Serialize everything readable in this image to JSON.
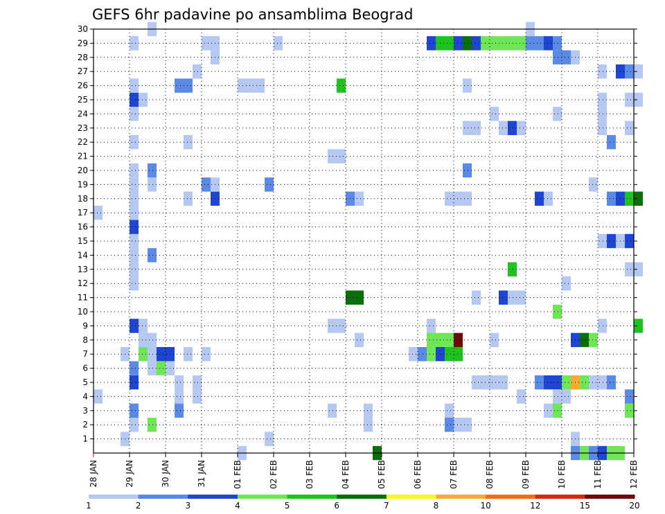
{
  "chart_data": {
    "type": "heatmap",
    "title": "GEFS 6hr padavine po ansamblima Beograd",
    "xlabel": "",
    "ylabel": "",
    "x_tick_labels": [
      "28 JAN",
      "29 JAN",
      "30 JAN",
      "31 JAN",
      "01 FEB",
      "02 FEB",
      "03 FEB",
      "04 FEB",
      "05 FEB",
      "06 FEB",
      "07 FEB",
      "08 FEB",
      "09 FEB",
      "10 FEB",
      "11 FEB",
      "12 FEB"
    ],
    "x_range_steps": [
      0,
      60
    ],
    "steps_per_day": 4,
    "y_tick_labels": [
      "1",
      "2",
      "3",
      "4",
      "5",
      "6",
      "7",
      "8",
      "9",
      "10",
      "11",
      "12",
      "13",
      "14",
      "15",
      "16",
      "17",
      "18",
      "19",
      "20",
      "21",
      "22",
      "23",
      "24",
      "25",
      "26",
      "27",
      "28",
      "29",
      "30"
    ],
    "y_range": [
      0,
      30
    ],
    "grid": true,
    "legend": {
      "position": "bottom",
      "levels": [
        "1",
        "2",
        "3",
        "4",
        "5",
        "6",
        "7",
        "8",
        "10",
        "12",
        "15",
        "20"
      ],
      "colors": [
        "#b4c8f2",
        "#5a8ae6",
        "#1e46d2",
        "#6ee656",
        "#1ec31e",
        "#0a6e0a",
        "#fafa1e",
        "#faaa32",
        "#f06e14",
        "#d22814",
        "#6e0a0a"
      ]
    },
    "cells": [
      [
        0,
        4,
        0
      ],
      [
        0,
        17,
        0
      ],
      [
        3,
        1,
        0
      ],
      [
        3,
        7,
        0
      ],
      [
        4,
        2,
        0
      ],
      [
        4,
        3,
        1
      ],
      [
        4,
        5,
        2
      ],
      [
        4,
        6,
        1
      ],
      [
        4,
        9,
        2
      ],
      [
        4,
        12,
        0
      ],
      [
        4,
        13,
        0
      ],
      [
        4,
        14,
        0
      ],
      [
        4,
        15,
        0
      ],
      [
        4,
        16,
        2
      ],
      [
        4,
        17,
        0
      ],
      [
        4,
        18,
        0
      ],
      [
        4,
        19,
        0
      ],
      [
        4,
        20,
        0
      ],
      [
        4,
        22,
        0
      ],
      [
        4,
        24,
        0
      ],
      [
        4,
        25,
        2
      ],
      [
        4,
        26,
        0
      ],
      [
        4,
        29,
        0
      ],
      [
        5,
        7,
        3
      ],
      [
        5,
        8,
        0
      ],
      [
        5,
        9,
        0
      ],
      [
        5,
        25,
        0
      ],
      [
        6,
        2,
        3
      ],
      [
        6,
        6,
        0
      ],
      [
        6,
        7,
        0
      ],
      [
        6,
        8,
        0
      ],
      [
        6,
        14,
        1
      ],
      [
        6,
        19,
        0
      ],
      [
        6,
        20,
        1
      ],
      [
        6,
        30,
        0
      ],
      [
        7,
        7,
        2
      ],
      [
        7,
        6,
        3
      ],
      [
        8,
        7,
        2
      ],
      [
        8,
        6,
        0
      ],
      [
        9,
        4,
        0
      ],
      [
        9,
        5,
        0
      ],
      [
        9,
        3,
        1
      ],
      [
        9,
        26,
        1
      ],
      [
        10,
        26,
        1
      ],
      [
        10,
        7,
        0
      ],
      [
        10,
        18,
        0
      ],
      [
        10,
        22,
        0
      ],
      [
        11,
        4,
        0
      ],
      [
        11,
        5,
        0
      ],
      [
        11,
        27,
        0
      ],
      [
        12,
        7,
        0
      ],
      [
        12,
        19,
        1
      ],
      [
        12,
        29,
        0
      ],
      [
        13,
        18,
        2
      ],
      [
        13,
        19,
        0
      ],
      [
        13,
        28,
        0
      ],
      [
        13,
        29,
        0
      ],
      [
        16,
        26,
        0
      ],
      [
        17,
        26,
        0
      ],
      [
        18,
        26,
        0
      ],
      [
        16,
        0,
        0
      ],
      [
        19,
        1,
        0
      ],
      [
        19,
        19,
        1
      ],
      [
        20,
        29,
        0
      ],
      [
        26,
        21,
        0
      ],
      [
        27,
        21,
        0
      ],
      [
        26,
        9,
        0
      ],
      [
        27,
        9,
        0
      ],
      [
        26,
        3,
        0
      ],
      [
        27,
        26,
        4
      ],
      [
        28,
        11,
        5
      ],
      [
        29,
        11,
        5
      ],
      [
        28,
        18,
        1
      ],
      [
        29,
        18,
        0
      ],
      [
        29,
        8,
        0
      ],
      [
        30,
        2,
        0
      ],
      [
        30,
        3,
        0
      ],
      [
        31,
        0,
        5
      ],
      [
        35,
        7,
        0
      ],
      [
        36,
        7,
        1
      ],
      [
        37,
        9,
        0
      ],
      [
        37,
        8,
        3
      ],
      [
        37,
        7,
        3
      ],
      [
        38,
        8,
        3
      ],
      [
        38,
        7,
        2
      ],
      [
        39,
        8,
        3
      ],
      [
        39,
        7,
        4
      ],
      [
        37,
        29,
        2
      ],
      [
        38,
        29,
        4
      ],
      [
        39,
        29,
        4
      ],
      [
        40,
        29,
        2
      ],
      [
        41,
        29,
        5
      ],
      [
        42,
        29,
        2
      ],
      [
        43,
        29,
        3
      ],
      [
        44,
        29,
        3
      ],
      [
        45,
        29,
        3
      ],
      [
        46,
        29,
        3
      ],
      [
        47,
        29,
        3
      ],
      [
        48,
        29,
        1
      ],
      [
        49,
        29,
        1
      ],
      [
        50,
        29,
        2
      ],
      [
        51,
        29,
        1
      ],
      [
        40,
        8,
        10
      ],
      [
        40,
        7,
        4
      ],
      [
        39,
        18,
        0
      ],
      [
        40,
        18,
        0
      ],
      [
        41,
        18,
        0
      ],
      [
        39,
        3,
        0
      ],
      [
        39,
        2,
        1
      ],
      [
        40,
        2,
        0
      ],
      [
        41,
        2,
        0
      ],
      [
        41,
        20,
        1
      ],
      [
        41,
        26,
        0
      ],
      [
        41,
        23,
        0
      ],
      [
        42,
        23,
        0
      ],
      [
        42,
        11,
        0
      ],
      [
        42,
        5,
        0
      ],
      [
        43,
        5,
        0
      ],
      [
        44,
        5,
        0
      ],
      [
        45,
        5,
        0
      ],
      [
        44,
        8,
        0
      ],
      [
        44,
        24,
        0
      ],
      [
        45,
        11,
        2
      ],
      [
        46,
        11,
        0
      ],
      [
        47,
        11,
        0
      ],
      [
        45,
        23,
        0
      ],
      [
        46,
        23,
        2
      ],
      [
        47,
        23,
        0
      ],
      [
        46,
        13,
        4
      ],
      [
        47,
        4,
        0
      ],
      [
        48,
        30,
        0
      ],
      [
        49,
        18,
        2
      ],
      [
        50,
        18,
        0
      ],
      [
        49,
        5,
        1
      ],
      [
        50,
        5,
        2
      ],
      [
        51,
        5,
        2
      ],
      [
        52,
        5,
        3
      ],
      [
        53,
        5,
        7
      ],
      [
        54,
        5,
        3
      ],
      [
        55,
        5,
        0
      ],
      [
        56,
        5,
        0
      ],
      [
        57,
        5,
        1
      ],
      [
        50,
        3,
        0
      ],
      [
        51,
        3,
        3
      ],
      [
        51,
        4,
        0
      ],
      [
        52,
        4,
        0
      ],
      [
        51,
        24,
        0
      ],
      [
        51,
        10,
        3
      ],
      [
        51,
        28,
        1
      ],
      [
        52,
        28,
        1
      ],
      [
        53,
        28,
        0
      ],
      [
        52,
        12,
        0
      ],
      [
        53,
        8,
        2
      ],
      [
        54,
        8,
        5
      ],
      [
        55,
        8,
        3
      ],
      [
        53,
        1,
        0
      ],
      [
        53,
        0,
        1
      ],
      [
        54,
        0,
        3
      ],
      [
        55,
        0,
        1
      ],
      [
        56,
        0,
        2
      ],
      [
        57,
        0,
        3
      ],
      [
        58,
        0,
        3
      ],
      [
        55,
        19,
        0
      ],
      [
        56,
        23,
        0
      ],
      [
        56,
        9,
        0
      ],
      [
        57,
        22,
        1
      ],
      [
        56,
        24,
        0
      ],
      [
        56,
        25,
        0
      ],
      [
        56,
        27,
        0
      ],
      [
        56,
        15,
        0
      ],
      [
        57,
        15,
        2
      ],
      [
        58,
        15,
        0
      ],
      [
        59,
        15,
        2
      ],
      [
        57,
        18,
        1
      ],
      [
        58,
        18,
        2
      ],
      [
        59,
        18,
        4
      ],
      [
        60,
        18,
        5
      ],
      [
        58,
        27,
        2
      ],
      [
        59,
        27,
        1
      ],
      [
        60,
        27,
        0
      ],
      [
        59,
        25,
        0
      ],
      [
        60,
        25,
        0
      ],
      [
        59,
        23,
        0
      ],
      [
        59,
        13,
        0
      ],
      [
        60,
        13,
        0
      ],
      [
        59,
        4,
        1
      ],
      [
        59,
        3,
        3
      ],
      [
        60,
        9,
        4
      ]
    ]
  }
}
